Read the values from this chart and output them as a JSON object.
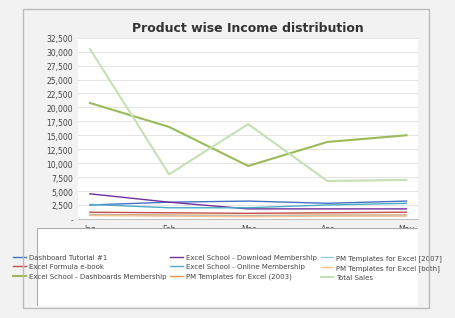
{
  "title": "Product wise Income distribution",
  "months": [
    "Jan",
    "Feb",
    "Mar",
    "Apr",
    "May"
  ],
  "series": [
    {
      "label": "Dashboard Tutorial #1",
      "color": "#4472C4",
      "values": [
        2500,
        3000,
        3200,
        2800,
        3200
      ],
      "linewidth": 1.0
    },
    {
      "label": "Excel Formula e-book",
      "color": "#C0504D",
      "values": [
        1200,
        1100,
        1000,
        1100,
        1200
      ],
      "linewidth": 1.0
    },
    {
      "label": "Excel School - Dashboards Membership",
      "color": "#9BBB59",
      "values": [
        20800,
        16500,
        9500,
        13800,
        15000
      ],
      "linewidth": 1.5
    },
    {
      "label": "Excel School - Download Membership",
      "color": "#7030A0",
      "values": [
        4500,
        3000,
        1800,
        1800,
        1800
      ],
      "linewidth": 1.0
    },
    {
      "label": "Excel School - Online Membership",
      "color": "#4BACC6",
      "values": [
        2600,
        2000,
        2000,
        2500,
        2800
      ],
      "linewidth": 1.0
    },
    {
      "label": "PM Templates for Excel (2003)",
      "color": "#F79646",
      "values": [
        800,
        700,
        600,
        700,
        700
      ],
      "linewidth": 1.0
    },
    {
      "label": "PM Templates for Excel [2007]",
      "color": "#92CDDC",
      "values": [
        700,
        600,
        500,
        600,
        600
      ],
      "linewidth": 1.0
    },
    {
      "label": "PM Templates for Excel [both]",
      "color": "#FAC090",
      "values": [
        600,
        500,
        400,
        500,
        500
      ],
      "linewidth": 1.0
    },
    {
      "label": "Total Sales",
      "color": "#C6E0B4",
      "values": [
        30500,
        8000,
        17000,
        6800,
        7000
      ],
      "linewidth": 1.5
    }
  ],
  "ylim": [
    0,
    32500
  ],
  "yticks": [
    0,
    2500,
    5000,
    7500,
    10000,
    12500,
    15000,
    17500,
    20000,
    22500,
    25000,
    27500,
    30000,
    32500
  ],
  "bg_color": "#F2F2F2",
  "plot_bg_color": "#FFFFFF",
  "grid_color": "#D9D9D9",
  "title_fontsize": 9,
  "legend_fontsize": 5.0,
  "tick_fontsize": 5.5,
  "outer_border_color": "#AAAAAA"
}
